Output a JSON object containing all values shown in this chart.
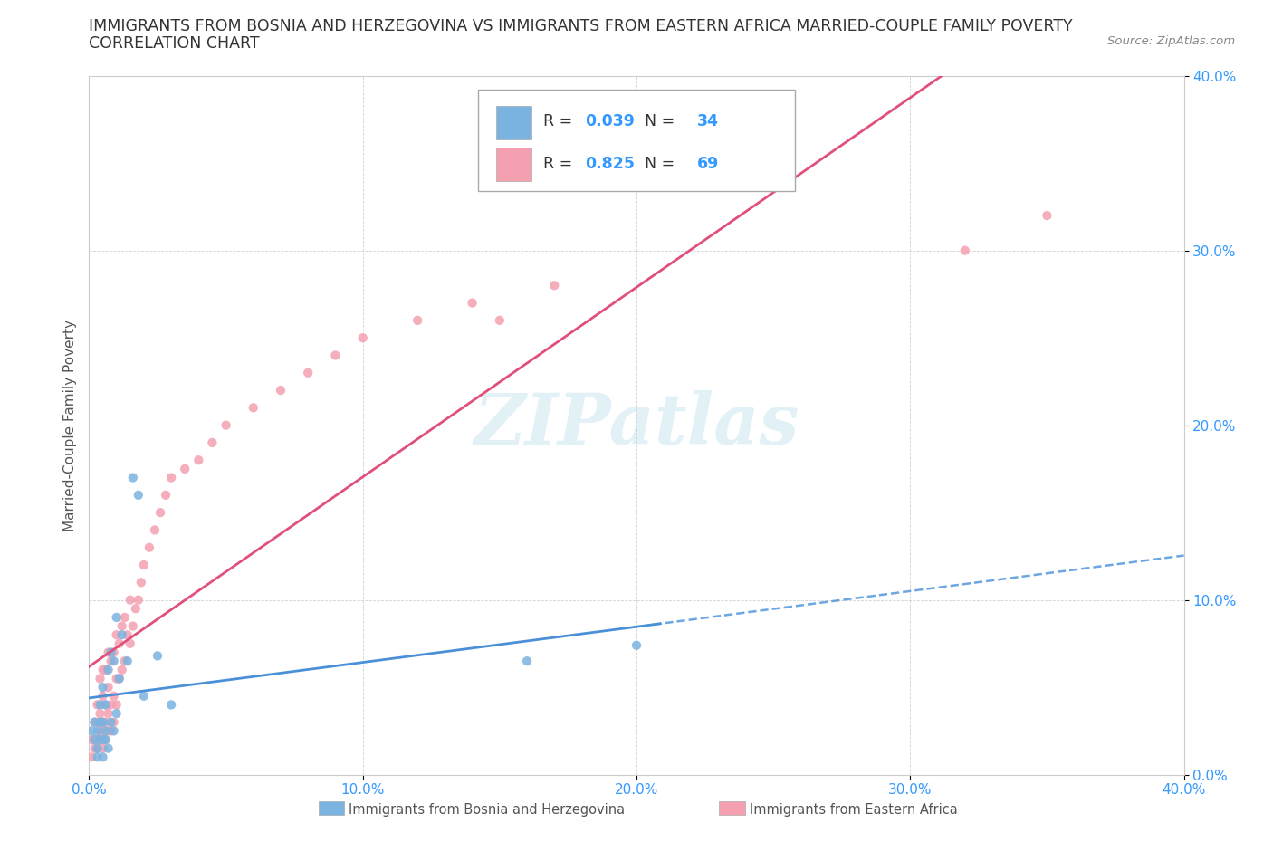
{
  "title_line1": "IMMIGRANTS FROM BOSNIA AND HERZEGOVINA VS IMMIGRANTS FROM EASTERN AFRICA MARRIED-COUPLE FAMILY POVERTY",
  "title_line2": "CORRELATION CHART",
  "source": "Source: ZipAtlas.com",
  "ylabel": "Married-Couple Family Poverty",
  "xlim": [
    0.0,
    0.4
  ],
  "ylim": [
    0.0,
    0.4
  ],
  "xticks": [
    0.0,
    0.1,
    0.2,
    0.3,
    0.4
  ],
  "yticks": [
    0.0,
    0.1,
    0.2,
    0.3,
    0.4
  ],
  "bosnia_color": "#7bb3e0",
  "eastern_africa_color": "#f4a0b0",
  "bosnia_line_color": "#4a90d9",
  "africa_line_color": "#e0507a",
  "bosnia_R": 0.039,
  "bosnia_N": 34,
  "eastern_africa_R": 0.825,
  "eastern_africa_N": 69,
  "watermark": "ZIPatlas",
  "legend_label_bosnia": "Immigrants from Bosnia and Herzegovina",
  "legend_label_africa": "Immigrants from Eastern Africa",
  "bosnia_scatter_x": [
    0.001,
    0.002,
    0.002,
    0.003,
    0.003,
    0.003,
    0.004,
    0.004,
    0.004,
    0.005,
    0.005,
    0.005,
    0.005,
    0.006,
    0.006,
    0.006,
    0.007,
    0.007,
    0.008,
    0.008,
    0.009,
    0.009,
    0.01,
    0.01,
    0.011,
    0.012,
    0.014,
    0.016,
    0.018,
    0.02,
    0.025,
    0.03,
    0.16,
    0.2
  ],
  "bosnia_scatter_y": [
    0.025,
    0.02,
    0.03,
    0.01,
    0.015,
    0.025,
    0.02,
    0.03,
    0.04,
    0.01,
    0.02,
    0.03,
    0.05,
    0.02,
    0.025,
    0.04,
    0.015,
    0.06,
    0.03,
    0.07,
    0.025,
    0.065,
    0.035,
    0.09,
    0.055,
    0.08,
    0.065,
    0.17,
    0.16,
    0.045,
    0.068,
    0.04,
    0.065,
    0.074
  ],
  "africa_scatter_x": [
    0.001,
    0.001,
    0.002,
    0.002,
    0.002,
    0.003,
    0.003,
    0.003,
    0.003,
    0.004,
    0.004,
    0.004,
    0.004,
    0.005,
    0.005,
    0.005,
    0.005,
    0.005,
    0.006,
    0.006,
    0.006,
    0.006,
    0.007,
    0.007,
    0.007,
    0.007,
    0.008,
    0.008,
    0.008,
    0.009,
    0.009,
    0.009,
    0.01,
    0.01,
    0.01,
    0.011,
    0.011,
    0.012,
    0.012,
    0.013,
    0.013,
    0.014,
    0.015,
    0.015,
    0.016,
    0.017,
    0.018,
    0.019,
    0.02,
    0.022,
    0.024,
    0.026,
    0.028,
    0.03,
    0.035,
    0.04,
    0.045,
    0.05,
    0.06,
    0.07,
    0.08,
    0.09,
    0.1,
    0.12,
    0.14,
    0.15,
    0.17,
    0.32,
    0.35
  ],
  "africa_scatter_y": [
    0.01,
    0.02,
    0.015,
    0.02,
    0.03,
    0.015,
    0.02,
    0.03,
    0.04,
    0.02,
    0.025,
    0.035,
    0.055,
    0.015,
    0.025,
    0.03,
    0.045,
    0.06,
    0.02,
    0.03,
    0.04,
    0.06,
    0.025,
    0.035,
    0.05,
    0.07,
    0.025,
    0.04,
    0.065,
    0.03,
    0.045,
    0.07,
    0.04,
    0.055,
    0.08,
    0.055,
    0.075,
    0.06,
    0.085,
    0.065,
    0.09,
    0.08,
    0.075,
    0.1,
    0.085,
    0.095,
    0.1,
    0.11,
    0.12,
    0.13,
    0.14,
    0.15,
    0.16,
    0.17,
    0.175,
    0.18,
    0.19,
    0.2,
    0.21,
    0.22,
    0.23,
    0.24,
    0.25,
    0.26,
    0.27,
    0.26,
    0.28,
    0.3,
    0.32
  ]
}
